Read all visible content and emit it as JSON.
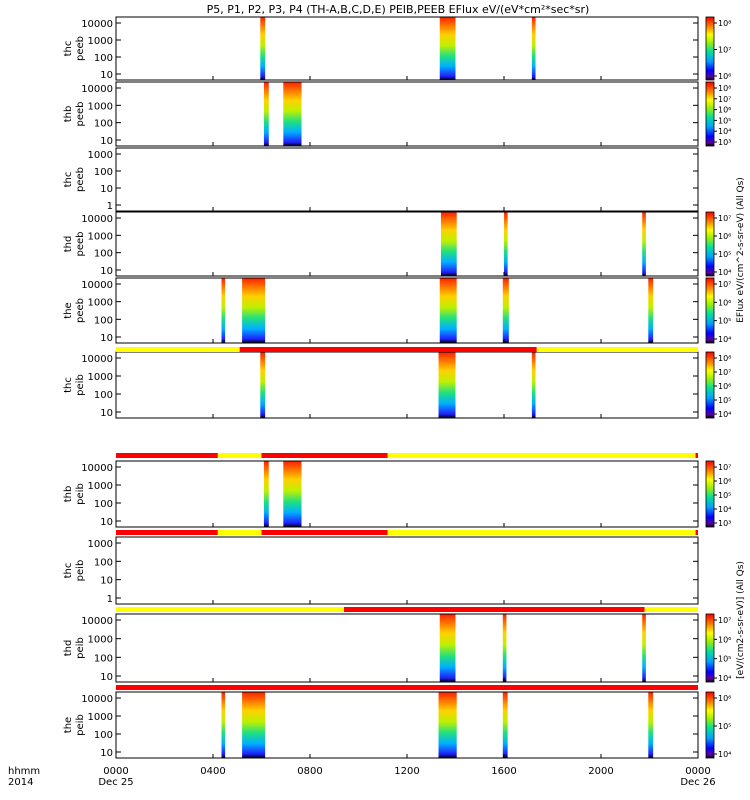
{
  "title": "P5, P1, P2, P3, P4 (TH-A,B,C,D,E) PEIB,PEEB EFlux eV/(eV*cm²*sec*sr)",
  "axis_header": {
    "line1": "hhmm",
    "line2": "2014"
  },
  "colorbar_label_top": "EFlux eV/(cm^2-s-sr-eV) (All Qs)",
  "colorbar_label_bottom": "[eV/(cm2-s-sr-eV)] (All Qs)",
  "chart_data": {
    "type": "heatmap",
    "x_axis": {
      "unit": "hhmm",
      "range_hours": [
        0,
        24
      ],
      "ticks": [
        {
          "hour": 0,
          "label": "0000",
          "sublabel": "Dec 25"
        },
        {
          "hour": 4,
          "label": "0400",
          "sublabel": ""
        },
        {
          "hour": 8,
          "label": "0800",
          "sublabel": ""
        },
        {
          "hour": 12,
          "label": "1200",
          "sublabel": ""
        },
        {
          "hour": 16,
          "label": "1600",
          "sublabel": ""
        },
        {
          "hour": 20,
          "label": "2000",
          "sublabel": ""
        },
        {
          "hour": 24,
          "label": "0000",
          "sublabel": "Dec 26"
        }
      ]
    },
    "panels": [
      {
        "probe": "thc",
        "product": "peeb",
        "ylog": true,
        "yticks": [
          "10",
          "100",
          "1000",
          "10000"
        ],
        "cbar": {
          "ticks": [
            "10⁶",
            "10⁷",
            "10⁸"
          ]
        },
        "bursts": [
          {
            "start": 5.95,
            "end": 6.15
          },
          {
            "start": 13.35,
            "end": 14.0
          },
          {
            "start": 17.15,
            "end": 17.3
          }
        ]
      },
      {
        "probe": "thb",
        "product": "peeb",
        "ylog": true,
        "yticks": [
          "10",
          "100",
          "1000",
          "10000"
        ],
        "cbar": {
          "ticks": [
            "10³",
            "10⁴",
            "10⁵",
            "10⁶",
            "10⁷",
            "10⁸"
          ]
        },
        "bursts": [
          {
            "start": 6.1,
            "end": 6.3
          },
          {
            "start": 6.9,
            "end": 7.65
          }
        ]
      },
      {
        "probe": "thc",
        "product": "peeb",
        "ylog": true,
        "yticks": [
          "1",
          "10",
          "100",
          "1000"
        ],
        "cbar": null,
        "bursts": []
      },
      {
        "probe": "thd",
        "product": "peeb",
        "ylog": true,
        "yticks": [
          "10",
          "100",
          "1000",
          "10000"
        ],
        "cbar": {
          "ticks": [
            "10⁴",
            "10⁵",
            "10⁶",
            "10⁷"
          ]
        },
        "bursts": [
          {
            "start": 13.4,
            "end": 14.05
          },
          {
            "start": 16.0,
            "end": 16.15
          },
          {
            "start": 21.7,
            "end": 21.85
          }
        ]
      },
      {
        "probe": "the",
        "product": "peeb",
        "ylog": true,
        "yticks": [
          "10",
          "100",
          "1000",
          "10000"
        ],
        "cbar": {
          "ticks": [
            "10⁴",
            "10⁵",
            "10⁶",
            "10⁷"
          ]
        },
        "bursts": [
          {
            "start": 4.35,
            "end": 4.5
          },
          {
            "start": 5.2,
            "end": 6.15
          },
          {
            "start": 13.35,
            "end": 14.05
          },
          {
            "start": 15.95,
            "end": 16.2
          },
          {
            "start": 21.95,
            "end": 22.15
          }
        ]
      },
      {
        "probe": "thc",
        "product": "peib",
        "ylog": true,
        "yticks": [
          "10",
          "100",
          "1000",
          "10000"
        ],
        "cbar": {
          "ticks": [
            "10⁴",
            "10⁵",
            "10⁶",
            "10⁷",
            "10⁸"
          ]
        },
        "bursts": [
          {
            "start": 5.95,
            "end": 6.15
          },
          {
            "start": 13.3,
            "end": 14.0
          },
          {
            "start": 17.15,
            "end": 17.3
          }
        ]
      },
      {
        "probe": "thb",
        "product": "peib",
        "ylog": true,
        "yticks": [
          "10",
          "100",
          "1000",
          "10000"
        ],
        "cbar": {
          "ticks": [
            "10³",
            "10⁴",
            "10⁵",
            "10⁶",
            "10⁷"
          ]
        },
        "bursts": [
          {
            "start": 6.1,
            "end": 6.3
          },
          {
            "start": 6.9,
            "end": 7.65
          }
        ]
      },
      {
        "probe": "thc",
        "product": "peib",
        "ylog": true,
        "yticks": [
          "1",
          "10",
          "100",
          "1000"
        ],
        "cbar": null,
        "bursts": []
      },
      {
        "probe": "thd",
        "product": "peib",
        "ylog": true,
        "yticks": [
          "10",
          "100",
          "1000",
          "10000"
        ],
        "cbar": {
          "ticks": [
            "10⁴",
            "10⁵",
            "10⁶",
            "10⁷"
          ]
        },
        "bursts": [
          {
            "start": 13.35,
            "end": 14.0
          },
          {
            "start": 15.95,
            "end": 16.1
          },
          {
            "start": 21.7,
            "end": 21.85
          }
        ]
      },
      {
        "probe": "the",
        "product": "peib",
        "ylog": true,
        "yticks": [
          "10",
          "100",
          "1000",
          "10000"
        ],
        "cbar": {
          "ticks": [
            "10⁴",
            "10⁵",
            "10⁶"
          ]
        },
        "bursts": [
          {
            "start": 4.35,
            "end": 4.5
          },
          {
            "start": 5.2,
            "end": 6.15
          },
          {
            "start": 13.3,
            "end": 14.05
          },
          {
            "start": 15.95,
            "end": 16.15
          },
          {
            "start": 21.95,
            "end": 22.15
          }
        ]
      }
    ],
    "mode_bars": [
      {
        "after_panel": 5,
        "segments": [
          {
            "start": 0,
            "end": 5.1,
            "color": "#ffff00"
          },
          {
            "start": 5.1,
            "end": 17.35,
            "color": "#ff0000"
          },
          {
            "start": 17.35,
            "end": 24,
            "color": "#ffff00"
          }
        ]
      },
      {
        "after_panel": 6,
        "segments": [
          {
            "start": 0,
            "end": 4.2,
            "color": "#ff0000"
          },
          {
            "start": 4.2,
            "end": 6.0,
            "color": "#ffff00"
          },
          {
            "start": 6.0,
            "end": 11.2,
            "color": "#ff0000"
          },
          {
            "start": 11.2,
            "end": 23.9,
            "color": "#ffff00"
          },
          {
            "start": 23.9,
            "end": 24,
            "color": "#ff0000"
          }
        ]
      },
      {
        "after_panel": 7,
        "segments": [
          {
            "start": 0,
            "end": 4.2,
            "color": "#ff0000"
          },
          {
            "start": 4.2,
            "end": 6.0,
            "color": "#ffff00"
          },
          {
            "start": 6.0,
            "end": 11.2,
            "color": "#ff0000"
          },
          {
            "start": 11.2,
            "end": 23.9,
            "color": "#ffff00"
          },
          {
            "start": 23.9,
            "end": 24,
            "color": "#ff0000"
          }
        ]
      },
      {
        "after_panel": 8,
        "segments": [
          {
            "start": 0,
            "end": 9.4,
            "color": "#ffff00"
          },
          {
            "start": 9.4,
            "end": 21.8,
            "color": "#ff0000"
          },
          {
            "start": 21.8,
            "end": 24,
            "color": "#ffff00"
          }
        ]
      },
      {
        "after_panel": 9,
        "segments": [
          {
            "start": 0,
            "end": 24,
            "color": "#ff0000"
          }
        ]
      }
    ]
  }
}
